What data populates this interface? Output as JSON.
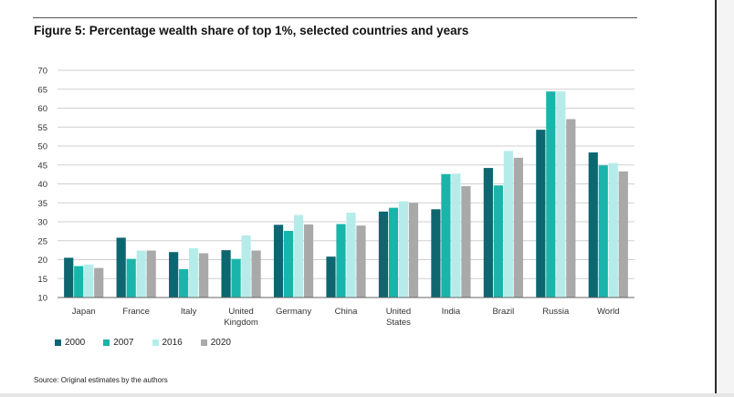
{
  "figure": {
    "title": "Figure 5: Percentage wealth share of top 1%, selected countries and years",
    "source": "Source: Original estimates by the authors"
  },
  "colors": {
    "2000": "#0e6670",
    "2007": "#19b5aa",
    "2016": "#b5ecea",
    "2020": "#a9a9a9"
  },
  "chart_data": {
    "type": "bar",
    "title": "Figure 5: Percentage wealth share of top 1%, selected countries and years",
    "xlabel": "",
    "ylabel": "",
    "ylim": [
      10,
      70
    ],
    "yticks": [
      10,
      15,
      20,
      25,
      30,
      35,
      40,
      45,
      50,
      55,
      60,
      65,
      70
    ],
    "grid": true,
    "legend_position": "bottom-left",
    "categories": [
      [
        "Japan"
      ],
      [
        "France"
      ],
      [
        "Italy"
      ],
      [
        "United",
        "Kingdom"
      ],
      [
        "Germany"
      ],
      [
        "China"
      ],
      [
        "United",
        "States"
      ],
      [
        "India"
      ],
      [
        "Brazil"
      ],
      [
        "Russia"
      ],
      [
        "World"
      ]
    ],
    "series": [
      {
        "name": "2000",
        "color": "#0e6670",
        "values": [
          20.5,
          25.8,
          22.0,
          22.5,
          29.2,
          20.8,
          32.7,
          33.3,
          44.2,
          54.3,
          48.3
        ]
      },
      {
        "name": "2007",
        "color": "#19b5aa",
        "values": [
          18.3,
          20.2,
          17.5,
          20.2,
          27.6,
          29.4,
          33.7,
          42.6,
          39.6,
          64.4,
          44.9
        ]
      },
      {
        "name": "2016",
        "color": "#b5ecea",
        "values": [
          18.7,
          22.4,
          23.0,
          26.4,
          31.8,
          32.4,
          35.4,
          42.7,
          48.7,
          64.4,
          45.5
        ]
      },
      {
        "name": "2020",
        "color": "#a9a9a9",
        "values": [
          17.8,
          22.4,
          21.7,
          22.4,
          29.3,
          29.0,
          35.0,
          39.4,
          46.9,
          57.1,
          43.3
        ]
      }
    ]
  }
}
